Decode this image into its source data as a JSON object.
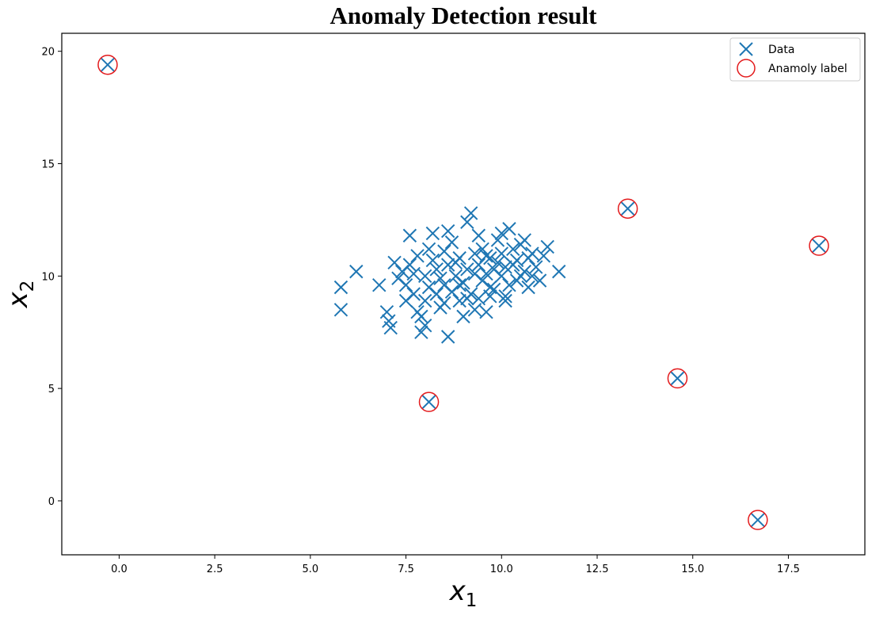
{
  "chart_data": {
    "type": "scatter",
    "title": "Anomaly Detection result",
    "xlabel": "x",
    "xlabel_sub": "1",
    "ylabel": "x",
    "ylabel_sub": "2",
    "xlim": [
      -1.5,
      19.5
    ],
    "ylim": [
      -2.4,
      20.8
    ],
    "xticks": [
      0.0,
      2.5,
      5.0,
      7.5,
      10.0,
      12.5,
      15.0,
      17.5
    ],
    "xtick_labels": [
      "0.0",
      "2.5",
      "5.0",
      "7.5",
      "10.0",
      "12.5",
      "15.0",
      "17.5"
    ],
    "yticks": [
      0,
      5,
      10,
      15,
      20
    ],
    "ytick_labels": [
      "0",
      "5",
      "10",
      "15",
      "20"
    ],
    "grid": false,
    "legend_position": "top-right",
    "colors": {
      "data": "#1f77b4",
      "anomaly": "#e31a1c",
      "axes": "#000000"
    },
    "legend": [
      {
        "label": "Data",
        "marker": "x-marker-icon"
      },
      {
        "label": "Anamoly label",
        "marker": "circle-marker-icon"
      }
    ],
    "series": [
      {
        "name": "Data",
        "marker": "x",
        "points": [
          [
            -0.3,
            19.4
          ],
          [
            8.1,
            4.4
          ],
          [
            13.3,
            13.0
          ],
          [
            14.6,
            5.45
          ],
          [
            16.7,
            -0.85
          ],
          [
            18.3,
            11.35
          ],
          [
            5.8,
            9.5
          ],
          [
            5.8,
            8.5
          ],
          [
            6.2,
            10.2
          ],
          [
            6.8,
            9.6
          ],
          [
            7.0,
            8.4
          ],
          [
            7.05,
            8.0
          ],
          [
            7.1,
            7.7
          ],
          [
            7.2,
            10.6
          ],
          [
            7.4,
            10.2
          ],
          [
            7.5,
            9.6
          ],
          [
            7.6,
            11.8
          ],
          [
            7.8,
            8.4
          ],
          [
            7.9,
            8.2
          ],
          [
            7.9,
            7.5
          ],
          [
            8.0,
            7.8
          ],
          [
            8.1,
            11.2
          ],
          [
            8.2,
            11.9
          ],
          [
            8.3,
            9.2
          ],
          [
            8.5,
            8.8
          ],
          [
            8.6,
            7.3
          ],
          [
            8.7,
            11.5
          ],
          [
            8.8,
            10.6
          ],
          [
            8.9,
            9.6
          ],
          [
            9.0,
            8.2
          ],
          [
            9.1,
            12.4
          ],
          [
            9.2,
            12.8
          ],
          [
            9.3,
            10.1
          ],
          [
            9.4,
            9.0
          ],
          [
            9.5,
            11.2
          ],
          [
            9.6,
            8.4
          ],
          [
            9.7,
            10.8
          ],
          [
            9.8,
            9.4
          ],
          [
            9.9,
            11.6
          ],
          [
            10.0,
            10.0
          ],
          [
            10.1,
            9.1
          ],
          [
            10.2,
            12.1
          ],
          [
            10.3,
            10.5
          ],
          [
            10.4,
            9.8
          ],
          [
            10.5,
            11.4
          ],
          [
            10.6,
            10.2
          ],
          [
            10.7,
            9.5
          ],
          [
            10.8,
            11.0
          ],
          [
            10.9,
            10.4
          ],
          [
            11.0,
            9.8
          ],
          [
            11.1,
            10.9
          ],
          [
            11.2,
            11.3
          ],
          [
            11.5,
            10.2
          ],
          [
            7.3,
            9.9
          ],
          [
            7.6,
            10.5
          ],
          [
            7.7,
            9.2
          ],
          [
            7.8,
            10.9
          ],
          [
            8.0,
            10.0
          ],
          [
            8.1,
            9.5
          ],
          [
            8.2,
            10.7
          ],
          [
            8.3,
            10.3
          ],
          [
            8.4,
            9.9
          ],
          [
            8.5,
            11.1
          ],
          [
            8.6,
            10.5
          ],
          [
            8.7,
            9.3
          ],
          [
            8.8,
            10.0
          ],
          [
            8.9,
            10.8
          ],
          [
            9.0,
            9.7
          ],
          [
            9.1,
            10.3
          ],
          [
            9.2,
            9.2
          ],
          [
            9.3,
            11.0
          ],
          [
            9.4,
            10.5
          ],
          [
            9.5,
            9.8
          ],
          [
            9.6,
            10.9
          ],
          [
            9.7,
            9.5
          ],
          [
            9.8,
            10.3
          ],
          [
            9.9,
            10.6
          ],
          [
            10.0,
            11.0
          ],
          [
            10.1,
            10.4
          ],
          [
            10.2,
            9.6
          ],
          [
            10.3,
            11.2
          ],
          [
            10.4,
            10.7
          ],
          [
            10.5,
            10.0
          ],
          [
            10.6,
            11.6
          ],
          [
            10.7,
            10.8
          ],
          [
            10.8,
            10.0
          ],
          [
            8.4,
            8.6
          ],
          [
            8.9,
            8.9
          ],
          [
            9.3,
            8.5
          ],
          [
            9.7,
            9.1
          ],
          [
            10.1,
            8.9
          ],
          [
            8.0,
            8.9
          ],
          [
            7.5,
            8.9
          ],
          [
            8.6,
            12.0
          ],
          [
            9.4,
            11.8
          ],
          [
            10.0,
            11.9
          ],
          [
            7.7,
            10.1
          ],
          [
            8.5,
            9.6
          ],
          [
            9.1,
            9.0
          ],
          [
            9.6,
            10.1
          ]
        ]
      },
      {
        "name": "Anamoly label",
        "marker": "circle",
        "points": [
          [
            -0.3,
            19.4
          ],
          [
            8.1,
            4.4
          ],
          [
            13.3,
            13.0
          ],
          [
            14.6,
            5.45
          ],
          [
            16.7,
            -0.85
          ],
          [
            18.3,
            11.35
          ]
        ]
      }
    ]
  }
}
